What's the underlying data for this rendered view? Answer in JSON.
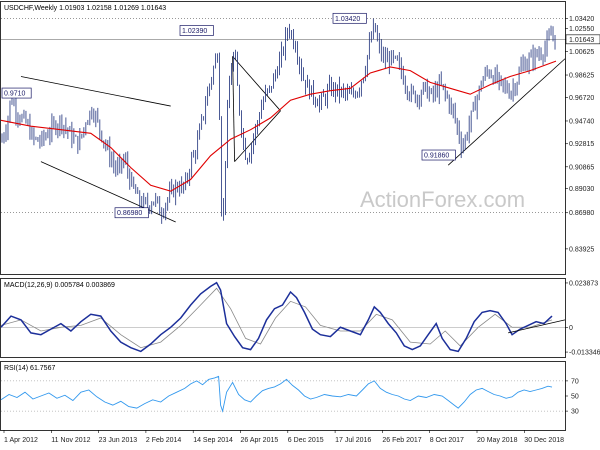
{
  "chart_data": {
    "type": "candlestick",
    "instrument_header": "USDCHF,Weekly  1.01903 1.02158 1.01269 1.01643",
    "watermark": "ActionForex.com",
    "last_price_label": "1.01643",
    "x_tick_labels": [
      "1 Apr 2012",
      "11 Nov 2012",
      "23 Jun 2013",
      "2 Feb 2014",
      "14 Sep 2014",
      "26 Apr 2015",
      "6 Dec 2015",
      "17 Jul 2016",
      "26 Feb 2017",
      "8 Oct 2017",
      "20 May 2018",
      "30 Dec 2018"
    ],
    "price": {
      "ylim": [
        0.818,
        1.048
      ],
      "y_ticks": [
        0.83925,
        0.8698,
        0.8903,
        0.90865,
        0.92815,
        0.9474,
        0.9672,
        0.98625,
        1.00625,
        1.01643,
        1.0255,
        1.0342
      ],
      "y_tick_labels": [
        "0.83925",
        "0.86980",
        "0.89030",
        "0.90865",
        "0.92815",
        "0.94740",
        "0.96720",
        "0.98625",
        "1.00625",
        "1.01643",
        "1.02550",
        "1.03420"
      ],
      "annotations": [
        {
          "text": "0.9710",
          "value": 0.971
        },
        {
          "text": "1.02390",
          "value": 1.0239
        },
        {
          "text": "1.03420",
          "value": 1.0342
        },
        {
          "text": "0.86980",
          "value": 0.8698
        },
        {
          "text": "0.91860",
          "value": 0.9186
        }
      ],
      "close_path": [
        [
          0,
          0.93
        ],
        [
          6,
          0.945
        ],
        [
          10,
          0.968
        ],
        [
          14,
          0.958
        ],
        [
          20,
          0.95
        ],
        [
          26,
          0.945
        ],
        [
          32,
          0.932
        ],
        [
          40,
          0.93
        ],
        [
          50,
          0.94
        ],
        [
          60,
          0.948
        ],
        [
          70,
          0.935
        ],
        [
          78,
          0.928
        ],
        [
          86,
          0.95
        ],
        [
          92,
          0.958
        ],
        [
          100,
          0.938
        ],
        [
          108,
          0.92
        ],
        [
          116,
          0.905
        ],
        [
          124,
          0.915
        ],
        [
          130,
          0.895
        ],
        [
          138,
          0.88
        ],
        [
          146,
          0.875
        ],
        [
          154,
          0.882
        ],
        [
          160,
          0.87
        ],
        [
          166,
          0.88
        ],
        [
          172,
          0.888
        ],
        [
          178,
          0.893
        ],
        [
          184,
          0.89
        ],
        [
          190,
          0.912
        ],
        [
          196,
          0.925
        ],
        [
          202,
          0.95
        ],
        [
          208,
          0.975
        ],
        [
          214,
          0.995
        ],
        [
          218,
          1.01
        ],
        [
          220,
          0.9
        ],
        [
          222,
          0.85
        ],
        [
          226,
          0.94
        ],
        [
          230,
          0.99
        ],
        [
          234,
          1.005
        ],
        [
          238,
          0.965
        ],
        [
          242,
          0.935
        ],
        [
          246,
          0.915
        ],
        [
          252,
          0.93
        ],
        [
          258,
          0.95
        ],
        [
          264,
          0.968
        ],
        [
          270,
          0.975
        ],
        [
          276,
          0.99
        ],
        [
          282,
          1.005
        ],
        [
          288,
          1.028
        ],
        [
          292,
          1.018
        ],
        [
          296,
          1.01
        ],
        [
          302,
          0.985
        ],
        [
          308,
          0.975
        ],
        [
          314,
          0.968
        ],
        [
          320,
          0.962
        ],
        [
          330,
          0.975
        ],
        [
          340,
          0.972
        ],
        [
          350,
          0.968
        ],
        [
          358,
          0.975
        ],
        [
          364,
          0.99
        ],
        [
          370,
          1.015
        ],
        [
          374,
          1.028
        ],
        [
          378,
          1.01
        ],
        [
          384,
          0.998
        ],
        [
          390,
          1.0
        ],
        [
          398,
          0.995
        ],
        [
          404,
          0.982
        ],
        [
          410,
          0.97
        ],
        [
          416,
          0.968
        ],
        [
          424,
          0.975
        ],
        [
          432,
          0.968
        ],
        [
          440,
          0.978
        ],
        [
          448,
          0.965
        ],
        [
          454,
          0.952
        ],
        [
          458,
          0.938
        ],
        [
          462,
          0.925
        ],
        [
          466,
          0.935
        ],
        [
          470,
          0.948
        ],
        [
          476,
          0.965
        ],
        [
          482,
          0.982
        ],
        [
          488,
          0.99
        ],
        [
          494,
          0.985
        ],
        [
          500,
          0.978
        ],
        [
          506,
          0.975
        ],
        [
          510,
          0.972
        ],
        [
          516,
          0.98
        ],
        [
          522,
          0.995
        ],
        [
          528,
          0.998
        ],
        [
          534,
          1.002
        ],
        [
          540,
          1.005
        ],
        [
          546,
          1.01
        ],
        [
          552,
          1.022
        ],
        [
          556,
          1.016
        ]
      ],
      "sma_path": [
        [
          0,
          0.948
        ],
        [
          30,
          0.943
        ],
        [
          60,
          0.94
        ],
        [
          90,
          0.937
        ],
        [
          110,
          0.925
        ],
        [
          130,
          0.908
        ],
        [
          150,
          0.893
        ],
        [
          170,
          0.888
        ],
        [
          190,
          0.898
        ],
        [
          210,
          0.918
        ],
        [
          230,
          0.932
        ],
        [
          250,
          0.94
        ],
        [
          270,
          0.95
        ],
        [
          290,
          0.965
        ],
        [
          310,
          0.97
        ],
        [
          330,
          0.973
        ],
        [
          350,
          0.975
        ],
        [
          370,
          0.988
        ],
        [
          390,
          0.993
        ],
        [
          410,
          0.99
        ],
        [
          430,
          0.98
        ],
        [
          450,
          0.975
        ],
        [
          470,
          0.97
        ],
        [
          490,
          0.978
        ],
        [
          510,
          0.985
        ],
        [
          530,
          0.99
        ],
        [
          556,
          0.998
        ]
      ],
      "trendlines": [
        {
          "from": [
            20,
            0.985
          ],
          "to": [
            170,
            0.96
          ]
        },
        {
          "from": [
            40,
            0.913
          ],
          "to": [
            175,
            0.862
          ]
        },
        {
          "from": [
            232,
            1.002
          ],
          "to": [
            280,
            0.956
          ]
        },
        {
          "from": [
            232,
            1.002
          ],
          "to": [
            234,
            0.913
          ]
        },
        {
          "from": [
            234,
            0.913
          ],
          "to": [
            280,
            0.956
          ]
        },
        {
          "from": [
            448,
            0.91
          ],
          "to": [
            565,
            1.0
          ]
        }
      ]
    },
    "macd": {
      "header": "MACD(12,26,9) 0.005784 0.003869",
      "ylim": [
        -0.016,
        0.026
      ],
      "y_ticks": [
        0.023873,
        0,
        -0.013346
      ],
      "y_tick_labels": [
        "0.023873",
        "0",
        "-0.013346"
      ],
      "macd_line": [
        [
          0,
          0.0
        ],
        [
          10,
          0.006
        ],
        [
          20,
          0.004
        ],
        [
          30,
          -0.003
        ],
        [
          40,
          -0.004
        ],
        [
          50,
          -0.001
        ],
        [
          60,
          0.002
        ],
        [
          70,
          -0.002
        ],
        [
          80,
          0.003
        ],
        [
          90,
          0.007
        ],
        [
          100,
          0.006
        ],
        [
          110,
          -0.002
        ],
        [
          120,
          -0.008
        ],
        [
          130,
          -0.011
        ],
        [
          140,
          -0.013
        ],
        [
          150,
          -0.009
        ],
        [
          160,
          -0.004
        ],
        [
          170,
          0.0
        ],
        [
          180,
          0.005
        ],
        [
          190,
          0.012
        ],
        [
          200,
          0.018
        ],
        [
          210,
          0.022
        ],
        [
          216,
          0.024
        ],
        [
          220,
          0.02
        ],
        [
          226,
          0.002
        ],
        [
          234,
          -0.005
        ],
        [
          242,
          -0.011
        ],
        [
          250,
          -0.012
        ],
        [
          258,
          -0.006
        ],
        [
          266,
          0.004
        ],
        [
          274,
          0.01
        ],
        [
          282,
          0.012
        ],
        [
          290,
          0.019
        ],
        [
          296,
          0.016
        ],
        [
          304,
          0.008
        ],
        [
          312,
          -0.001
        ],
        [
          320,
          -0.004
        ],
        [
          330,
          -0.005
        ],
        [
          340,
          0.0
        ],
        [
          350,
          -0.002
        ],
        [
          360,
          -0.004
        ],
        [
          368,
          0.004
        ],
        [
          374,
          0.011
        ],
        [
          380,
          0.008
        ],
        [
          388,
          0.002
        ],
        [
          396,
          -0.003
        ],
        [
          404,
          -0.01
        ],
        [
          412,
          -0.012
        ],
        [
          420,
          -0.01
        ],
        [
          428,
          -0.004
        ],
        [
          436,
          0.002
        ],
        [
          442,
          -0.006
        ],
        [
          450,
          -0.012
        ],
        [
          458,
          -0.013
        ],
        [
          466,
          -0.006
        ],
        [
          474,
          0.003
        ],
        [
          482,
          0.008
        ],
        [
          490,
          0.009
        ],
        [
          498,
          0.008
        ],
        [
          506,
          0.002
        ],
        [
          512,
          -0.004
        ],
        [
          520,
          -0.001
        ],
        [
          528,
          0.001
        ],
        [
          536,
          0.003
        ],
        [
          544,
          0.002
        ],
        [
          552,
          0.006
        ]
      ],
      "signal_line": [
        [
          0,
          0.001
        ],
        [
          20,
          0.004
        ],
        [
          40,
          -0.002
        ],
        [
          60,
          0.0
        ],
        [
          80,
          0.001
        ],
        [
          100,
          0.005
        ],
        [
          120,
          -0.004
        ],
        [
          140,
          -0.011
        ],
        [
          160,
          -0.008
        ],
        [
          180,
          0.001
        ],
        [
          200,
          0.012
        ],
        [
          216,
          0.021
        ],
        [
          230,
          0.01
        ],
        [
          245,
          -0.006
        ],
        [
          260,
          -0.009
        ],
        [
          275,
          0.005
        ],
        [
          290,
          0.014
        ],
        [
          305,
          0.011
        ],
        [
          320,
          0.001
        ],
        [
          340,
          -0.002
        ],
        [
          360,
          -0.002
        ],
        [
          376,
          0.007
        ],
        [
          392,
          0.004
        ],
        [
          410,
          -0.008
        ],
        [
          430,
          -0.009
        ],
        [
          445,
          -0.002
        ],
        [
          460,
          -0.01
        ],
        [
          478,
          0.0
        ],
        [
          495,
          0.007
        ],
        [
          512,
          0.0
        ],
        [
          530,
          0.0
        ],
        [
          552,
          0.004
        ]
      ],
      "trendline": {
        "from": [
          508,
          -0.003
        ],
        "to": [
          565,
          0.004
        ]
      }
    },
    "rsi": {
      "header": "RSI(14) 61.7567",
      "ylim": [
        5,
        95
      ],
      "y_ticks": [
        70,
        50,
        30
      ],
      "y_tick_labels": [
        "70",
        "50",
        "30"
      ],
      "values": [
        [
          0,
          45
        ],
        [
          8,
          52
        ],
        [
          16,
          48
        ],
        [
          24,
          55
        ],
        [
          32,
          46
        ],
        [
          40,
          50
        ],
        [
          48,
          54
        ],
        [
          56,
          47
        ],
        [
          64,
          51
        ],
        [
          72,
          44
        ],
        [
          80,
          55
        ],
        [
          88,
          58
        ],
        [
          96,
          49
        ],
        [
          104,
          42
        ],
        [
          112,
          38
        ],
        [
          120,
          43
        ],
        [
          128,
          36
        ],
        [
          136,
          34
        ],
        [
          144,
          40
        ],
        [
          152,
          45
        ],
        [
          160,
          42
        ],
        [
          168,
          50
        ],
        [
          176,
          55
        ],
        [
          184,
          60
        ],
        [
          190,
          66
        ],
        [
          196,
          70
        ],
        [
          202,
          65
        ],
        [
          208,
          72
        ],
        [
          214,
          74
        ],
        [
          218,
          76
        ],
        [
          220,
          38
        ],
        [
          222,
          30
        ],
        [
          226,
          55
        ],
        [
          232,
          68
        ],
        [
          238,
          52
        ],
        [
          244,
          45
        ],
        [
          250,
          42
        ],
        [
          256,
          50
        ],
        [
          262,
          57
        ],
        [
          268,
          60
        ],
        [
          274,
          62
        ],
        [
          280,
          66
        ],
        [
          286,
          72
        ],
        [
          292,
          64
        ],
        [
          298,
          58
        ],
        [
          304,
          50
        ],
        [
          310,
          46
        ],
        [
          316,
          48
        ],
        [
          324,
          52
        ],
        [
          332,
          50
        ],
        [
          340,
          49
        ],
        [
          348,
          52
        ],
        [
          356,
          50
        ],
        [
          362,
          58
        ],
        [
          368,
          66
        ],
        [
          374,
          70
        ],
        [
          380,
          60
        ],
        [
          386,
          55
        ],
        [
          392,
          52
        ],
        [
          398,
          50
        ],
        [
          404,
          46
        ],
        [
          410,
          44
        ],
        [
          418,
          50
        ],
        [
          426,
          48
        ],
        [
          434,
          52
        ],
        [
          442,
          50
        ],
        [
          448,
          44
        ],
        [
          454,
          38
        ],
        [
          458,
          34
        ],
        [
          464,
          42
        ],
        [
          470,
          52
        ],
        [
          476,
          58
        ],
        [
          482,
          60
        ],
        [
          488,
          56
        ],
        [
          494,
          52
        ],
        [
          500,
          50
        ],
        [
          506,
          47
        ],
        [
          512,
          49
        ],
        [
          518,
          55
        ],
        [
          524,
          58
        ],
        [
          530,
          56
        ],
        [
          536,
          58
        ],
        [
          542,
          60
        ],
        [
          548,
          63
        ],
        [
          552,
          61.76
        ]
      ]
    }
  }
}
